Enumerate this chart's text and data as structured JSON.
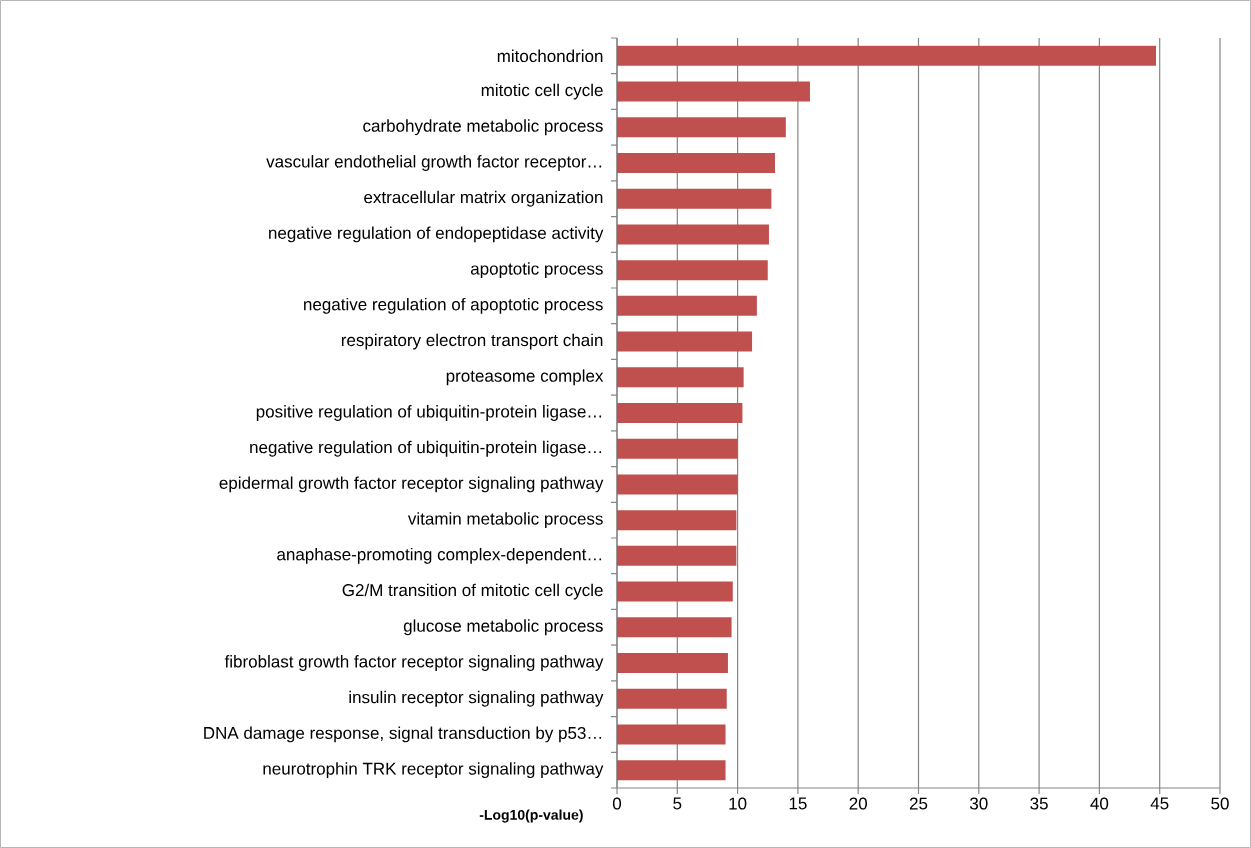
{
  "chart_data": {
    "type": "bar",
    "orientation": "horizontal",
    "xlabel": "-Log10(p-value)",
    "categories": [
      "mitochondrion",
      "mitotic cell cycle",
      "carbohydrate metabolic process",
      "vascular endothelial growth factor receptor…",
      "extracellular matrix organization",
      "negative regulation of endopeptidase activity",
      "apoptotic process",
      "negative regulation of apoptotic process",
      "respiratory electron transport chain",
      "proteasome complex",
      "positive regulation of ubiquitin-protein ligase…",
      "negative regulation of ubiquitin-protein ligase…",
      "epidermal growth factor receptor signaling pathway",
      "vitamin metabolic process",
      "anaphase-promoting complex-dependent…",
      "G2/M transition of mitotic cell cycle",
      "glucose metabolic process",
      "fibroblast growth factor receptor signaling pathway",
      "insulin receptor signaling pathway",
      "DNA damage response, signal transduction by p53…",
      "neurotrophin TRK receptor signaling pathway"
    ],
    "values": [
      44.7,
      16.0,
      14.0,
      13.1,
      12.8,
      12.6,
      12.5,
      11.6,
      11.2,
      10.5,
      10.4,
      10.0,
      10.0,
      9.9,
      9.9,
      9.6,
      9.5,
      9.2,
      9.1,
      9.0,
      9.0
    ],
    "color": "#c0504d",
    "xlim": [
      0,
      50
    ],
    "xticks": [
      0,
      5,
      10,
      15,
      20,
      25,
      30,
      35,
      40,
      45,
      50
    ],
    "grid": "x"
  }
}
